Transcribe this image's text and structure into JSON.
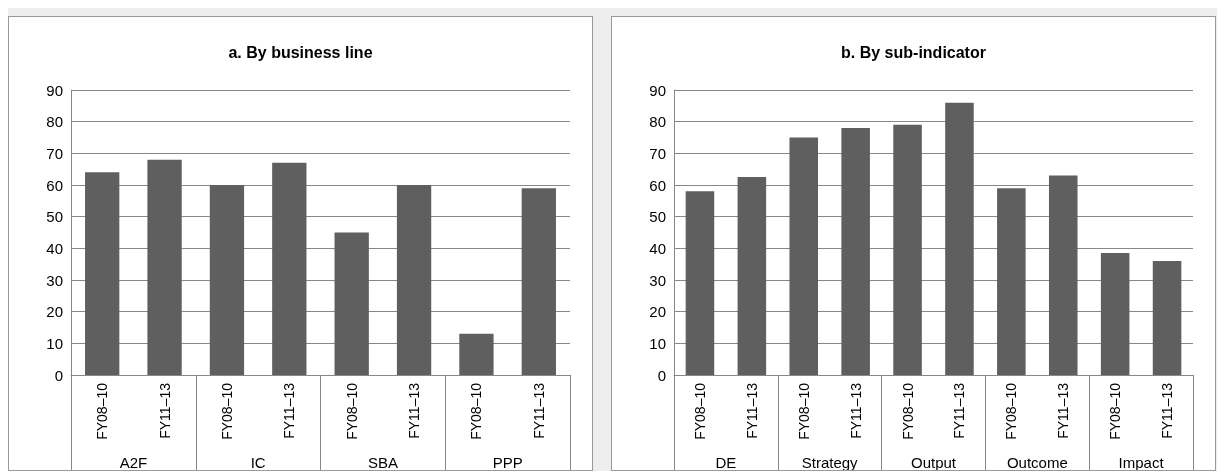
{
  "chart_data": [
    {
      "type": "bar",
      "title": "a. By business line",
      "categories": [
        "FY08–10",
        "FY11–13",
        "FY08–10",
        "FY11–13",
        "FY08–10",
        "FY11–13",
        "FY08–10",
        "FY11–13"
      ],
      "values": [
        64,
        68,
        60,
        67,
        45,
        60,
        13,
        59
      ],
      "color": "#5f5f5f",
      "ylim": [
        0,
        90
      ],
      "yticks": [
        0,
        10,
        20,
        30,
        40,
        50,
        60,
        70,
        80,
        90
      ],
      "grid": "y",
      "annotations": [
        "A2F",
        "IC",
        "SBA",
        "PPP"
      ]
    },
    {
      "type": "bar",
      "title": "b. By sub-indicator",
      "categories": [
        "FY08–10",
        "FY11–13",
        "FY08–10",
        "FY11–13",
        "FY08–10",
        "FY11–13",
        "FY08–10",
        "FY11–13",
        "FY08–10",
        "FY11–13"
      ],
      "values": [
        58,
        62.5,
        75,
        78,
        79,
        86,
        59,
        63,
        38.5,
        36
      ],
      "color": "#5f5f5f",
      "ylim": [
        0,
        90
      ],
      "yticks": [
        0,
        10,
        20,
        30,
        40,
        50,
        60,
        70,
        80,
        90
      ],
      "grid": "y",
      "annotations": [
        "DE",
        "Strategy",
        "Output",
        "Outcome",
        "Impact"
      ]
    }
  ]
}
